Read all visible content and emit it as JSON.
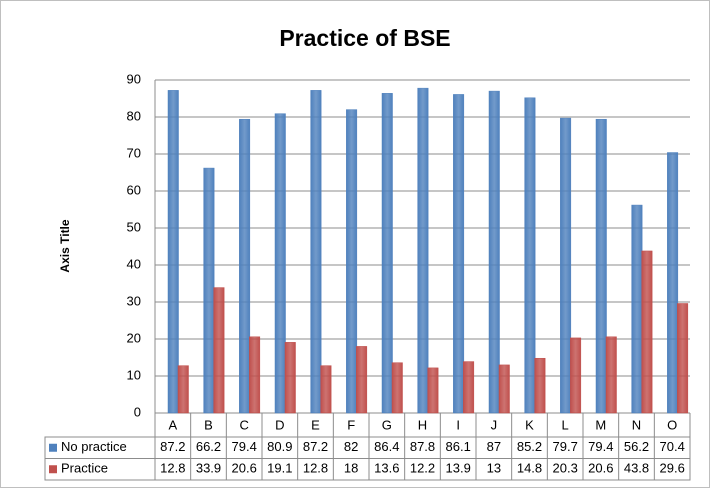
{
  "chart_data": {
    "type": "bar",
    "title": "Practice of BSE",
    "y_label": "Axis Title",
    "categories": [
      "A",
      "B",
      "C",
      "D",
      "E",
      "F",
      "G",
      "H",
      "I",
      "J",
      "K",
      "L",
      "M",
      "N",
      "O"
    ],
    "series": [
      {
        "name": "No practice",
        "color": "#4f81bd",
        "values": [
          87.2,
          66.2,
          79.4,
          80.9,
          87.2,
          82,
          86.4,
          87.8,
          86.1,
          87,
          85.2,
          79.7,
          79.4,
          56.2,
          70.4
        ]
      },
      {
        "name": "Practice",
        "color": "#c0504d",
        "values": [
          12.8,
          33.9,
          20.6,
          19.1,
          12.8,
          18,
          13.6,
          12.2,
          13.9,
          13,
          14.8,
          20.3,
          20.6,
          43.8,
          29.6
        ]
      }
    ],
    "ylim": [
      0,
      90
    ],
    "yticks": [
      0,
      10,
      20,
      30,
      40,
      50,
      60,
      70,
      80,
      90
    ],
    "grid": true
  }
}
